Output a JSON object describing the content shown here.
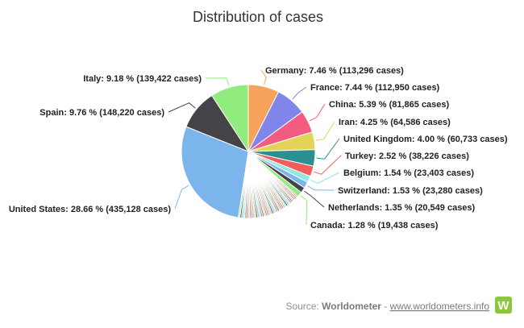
{
  "chart_data": {
    "type": "pie",
    "title": "Distribution of cases",
    "slices": [
      {
        "name": "United States",
        "percent": 28.66,
        "cases": "435,128",
        "label": "United States: 28.66 % (435,128 cases)",
        "color": "#7cb5ec"
      },
      {
        "name": "Spain",
        "percent": 9.76,
        "cases": "148,220",
        "label": "Spain: 9.76 % (148,220 cases)",
        "color": "#434348"
      },
      {
        "name": "Italy",
        "percent": 9.18,
        "cases": "139,422",
        "label": "Italy: 9.18 % (139,422 cases)",
        "color": "#90ed7d"
      },
      {
        "name": "Germany",
        "percent": 7.46,
        "cases": "113,296",
        "label": "Germany: 7.46 % (113,296 cases)",
        "color": "#f7a35c"
      },
      {
        "name": "France",
        "percent": 7.44,
        "cases": "112,950",
        "label": "France: 7.44 % (112,950 cases)",
        "color": "#8085e9"
      },
      {
        "name": "China",
        "percent": 5.39,
        "cases": "81,865",
        "label": "China: 5.39 % (81,865 cases)",
        "color": "#f15c80"
      },
      {
        "name": "Iran",
        "percent": 4.25,
        "cases": "64,586",
        "label": "Iran: 4.25 % (64,586 cases)",
        "color": "#e4d354"
      },
      {
        "name": "United Kingdom",
        "percent": 4.0,
        "cases": "60,733",
        "label": "United Kingdom: 4.00 % (60,733 cases)",
        "color": "#2b908f"
      },
      {
        "name": "Turkey",
        "percent": 2.52,
        "cases": "38,226",
        "label": "Turkey: 2.52 % (38,226 cases)",
        "color": "#f45b5b"
      },
      {
        "name": "Belgium",
        "percent": 1.54,
        "cases": "23,403",
        "label": "Belgium: 1.54 % (23,403 cases)",
        "color": "#91e8e1"
      },
      {
        "name": "Switzerland",
        "percent": 1.53,
        "cases": "23,280",
        "label": "Switzerland: 1.53 % (23,280 cases)",
        "color": "#7cb5ec"
      },
      {
        "name": "Netherlands",
        "percent": 1.35,
        "cases": "20,549",
        "label": "Netherlands: 1.35 % (20,549 cases)",
        "color": "#434348"
      },
      {
        "name": "Canada",
        "percent": 1.28,
        "cases": "19,438",
        "label": "Canada: 1.28 % (19,438 cases)",
        "color": "#90ed7d"
      }
    ],
    "other_slice_colors": [
      "#f7a35c",
      "#8085e9",
      "#f15c80",
      "#e4d354",
      "#2b908f",
      "#f45b5b",
      "#91e8e1",
      "#7cb5ec",
      "#434348",
      "#90ed7d"
    ],
    "legend": "none",
    "data_labels": "outside with connector lines"
  },
  "source": {
    "prefix": "Source: ",
    "name": "Worldometer",
    "separator": " - ",
    "url_text": "www.worldometers.info",
    "logo_letter": "W",
    "logo_color": "#8cc63f"
  }
}
